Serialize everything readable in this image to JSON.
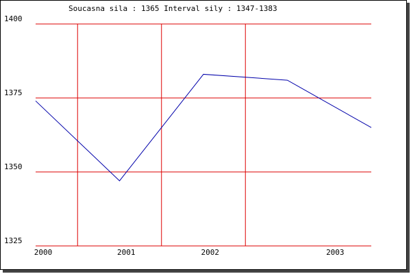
{
  "chart_data": {
    "type": "line",
    "title": "Soucasna sila : 1365  Interval sily : 1347-1383",
    "x": [
      0,
      1,
      2,
      3,
      4
    ],
    "series": [
      {
        "color": "#0000aa",
        "values": [
          1374,
          1347,
          1383,
          1381,
          1365
        ]
      }
    ],
    "xlim": [
      0,
      4
    ],
    "xticks": [
      {
        "value": 0.09,
        "label": "2000"
      },
      {
        "value": 1.08,
        "label": "2001"
      },
      {
        "value": 2.08,
        "label": "2002"
      },
      {
        "value": 3.57,
        "label": "2003"
      }
    ],
    "xgrid": [
      0.5,
      1.5,
      2.5
    ],
    "ylim": [
      1325,
      1400
    ],
    "yticks": [
      1325,
      1350,
      1375,
      1400
    ],
    "grid": true,
    "grid_color": "#dd0000"
  }
}
